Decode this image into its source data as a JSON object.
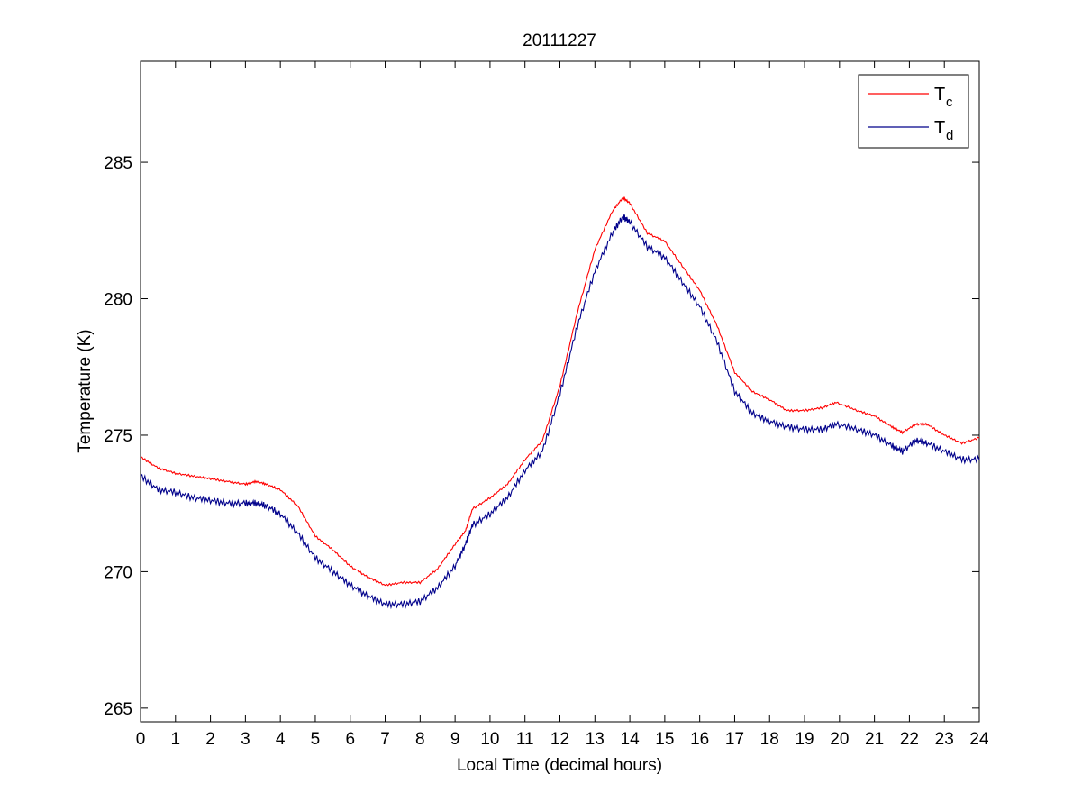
{
  "chart_data": {
    "type": "line",
    "title": "20111227",
    "xlabel": "Local Time (decimal hours)",
    "ylabel": "Temperature (K)",
    "xlim": [
      0,
      24
    ],
    "ylim": [
      264.5,
      288.7
    ],
    "xticks": [
      0,
      1,
      2,
      3,
      4,
      5,
      6,
      7,
      8,
      9,
      10,
      11,
      12,
      13,
      14,
      15,
      16,
      17,
      18,
      19,
      20,
      21,
      22,
      23,
      24
    ],
    "xtick_labels": [
      "0",
      "1",
      "2",
      "3",
      "4",
      "5",
      "6",
      "7",
      "8",
      "9",
      "10",
      "11",
      "12",
      "13",
      "14",
      "15",
      "16",
      "17",
      "18",
      "19",
      "20",
      "21",
      "22",
      "23",
      "24"
    ],
    "yticks": [
      265,
      270,
      275,
      280,
      285
    ],
    "ytick_labels": [
      "265",
      "270",
      "275",
      "280",
      "285"
    ],
    "grid": false,
    "legend_position": "top-right",
    "series": [
      {
        "name": "T_c",
        "label_main": "T",
        "label_sub": "c",
        "color": "#ff0000",
        "x": [
          0,
          0.5,
          1,
          1.5,
          2,
          2.5,
          3,
          3.3,
          3.6,
          4,
          4.5,
          5,
          5.5,
          6,
          6.5,
          7,
          7.5,
          8,
          8.5,
          9,
          9.3,
          9.5,
          10,
          10.5,
          11,
          11.5,
          12,
          12.5,
          13,
          13.5,
          13.8,
          14,
          14.5,
          15,
          15.5,
          16,
          16.5,
          17,
          17.5,
          18,
          18.5,
          19,
          19.5,
          19.9,
          20.5,
          21,
          21.5,
          21.8,
          22.2,
          22.5,
          23,
          23.5,
          24
        ],
        "y": [
          274.2,
          273.8,
          273.6,
          273.5,
          273.4,
          273.3,
          273.2,
          273.3,
          273.2,
          273.0,
          272.4,
          271.3,
          270.8,
          270.2,
          269.8,
          269.5,
          269.6,
          269.6,
          270.1,
          271.0,
          271.5,
          272.3,
          272.7,
          273.2,
          274.1,
          274.8,
          276.8,
          279.5,
          281.8,
          283.2,
          283.7,
          283.5,
          282.4,
          282.1,
          281.2,
          280.3,
          279.0,
          277.3,
          276.6,
          276.3,
          275.9,
          275.9,
          276.0,
          276.2,
          275.9,
          275.7,
          275.3,
          275.1,
          275.4,
          275.4,
          275.0,
          274.7,
          274.9
        ]
      },
      {
        "name": "T_d",
        "label_main": "T",
        "label_sub": "d",
        "color": "#00008b",
        "x": [
          0,
          0.5,
          1,
          1.5,
          2,
          2.5,
          3,
          3.3,
          3.6,
          4,
          4.5,
          5,
          5.5,
          6,
          6.5,
          7,
          7.5,
          8,
          8.5,
          9,
          9.3,
          9.5,
          10,
          10.5,
          11,
          11.5,
          12,
          12.5,
          13,
          13.5,
          13.8,
          14,
          14.5,
          15,
          15.5,
          16,
          16.5,
          17,
          17.5,
          18,
          18.5,
          19,
          19.5,
          19.9,
          20.5,
          21,
          21.5,
          21.8,
          22.2,
          22.5,
          23,
          23.5,
          24
        ],
        "y": [
          273.5,
          273.0,
          272.9,
          272.7,
          272.6,
          272.5,
          272.5,
          272.5,
          272.4,
          272.1,
          271.4,
          270.5,
          270.0,
          269.5,
          269.1,
          268.8,
          268.8,
          268.9,
          269.4,
          270.2,
          271.0,
          271.7,
          272.1,
          272.7,
          273.7,
          274.4,
          276.5,
          279.0,
          281.0,
          282.4,
          283.0,
          282.8,
          281.9,
          281.5,
          280.6,
          279.7,
          278.4,
          276.6,
          275.8,
          275.5,
          275.3,
          275.2,
          275.2,
          275.4,
          275.2,
          275.0,
          274.6,
          274.4,
          274.8,
          274.7,
          274.4,
          274.1,
          274.1
        ]
      }
    ]
  }
}
